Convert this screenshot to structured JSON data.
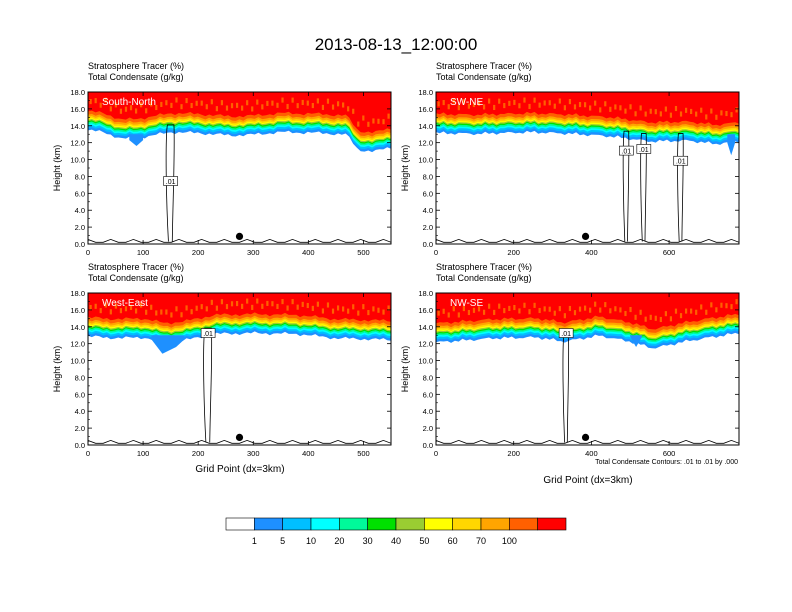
{
  "title": "2013-08-13_12:00:00",
  "header_line1": "Stratosphere Tracer   (%)",
  "header_line2": "Total Condensate   (g/kg)",
  "ylabel": "Height (km)",
  "xlabel": "Grid Point (dx=3km)",
  "contour_note": "Total Condensate Contours: .01 to .01 by .000",
  "chart_data": [
    {
      "type": "heatmap",
      "panel": "South-North",
      "xlim": [
        0,
        550
      ],
      "ylim": [
        0,
        18
      ],
      "xticks": [
        0,
        100,
        200,
        300,
        400,
        500
      ],
      "yticks": [
        "0.0",
        "2.0",
        "4.0",
        "6.0",
        "8.0",
        "10.0",
        "12.0",
        "14.0",
        "16.0",
        "18.0"
      ],
      "marker_x": 275,
      "contour_labels": [
        {
          "text": ".01",
          "x": 150,
          "y": 7.4
        }
      ],
      "tracer_base": [
        [
          0,
          14.8
        ],
        [
          30,
          14.6
        ],
        [
          60,
          13.8
        ],
        [
          80,
          13.9
        ],
        [
          110,
          14.1
        ],
        [
          150,
          14.6
        ],
        [
          200,
          14.5
        ],
        [
          260,
          14.2
        ],
        [
          300,
          14.3
        ],
        [
          350,
          14.6
        ],
        [
          420,
          14.5
        ],
        [
          470,
          14.3
        ],
        [
          490,
          12.5
        ],
        [
          520,
          12.3
        ],
        [
          550,
          12.8
        ]
      ],
      "blue_dip": [
        [
          75,
          12.3
        ],
        [
          88,
          11.6
        ],
        [
          100,
          12.3
        ]
      ]
    },
    {
      "type": "heatmap",
      "panel": "SW-NE",
      "xlim": [
        0,
        780
      ],
      "ylim": [
        0,
        18
      ],
      "xticks": [
        0,
        200,
        400,
        600
      ],
      "yticks": [
        "0.0",
        "2.0",
        "4.0",
        "6.0",
        "8.0",
        "10.0",
        "12.0",
        "14.0",
        "16.0",
        "18.0"
      ],
      "marker_x": 385,
      "contour_labels": [
        {
          "text": ".01",
          "x": 490,
          "y": 11.0
        },
        {
          "text": ".01",
          "x": 535,
          "y": 11.2
        },
        {
          "text": ".01",
          "x": 630,
          "y": 9.8
        }
      ],
      "tracer_base": [
        [
          0,
          14.5
        ],
        [
          100,
          14.4
        ],
        [
          250,
          14.6
        ],
        [
          350,
          14.4
        ],
        [
          450,
          14.1
        ],
        [
          550,
          13.5
        ],
        [
          650,
          13.6
        ],
        [
          720,
          13.2
        ],
        [
          780,
          13.5
        ]
      ],
      "blue_dip": [
        [
          750,
          12.0
        ],
        [
          760,
          10.5
        ],
        [
          770,
          12.0
        ]
      ]
    },
    {
      "type": "heatmap",
      "panel": "West-East",
      "xlim": [
        0,
        550
      ],
      "ylim": [
        0,
        18
      ],
      "xticks": [
        0,
        100,
        200,
        300,
        400,
        500
      ],
      "yticks": [
        "0.0",
        "2.0",
        "4.0",
        "6.0",
        "8.0",
        "10.0",
        "12.0",
        "14.0",
        "16.0",
        "18.0"
      ],
      "marker_x": 275,
      "contour_labels": [
        {
          "text": ".01",
          "x": 218,
          "y": 13.2
        }
      ],
      "tracer_base": [
        [
          0,
          14.2
        ],
        [
          60,
          14.0
        ],
        [
          100,
          14.1
        ],
        [
          140,
          13.5
        ],
        [
          180,
          13.8
        ],
        [
          230,
          14.5
        ],
        [
          300,
          14.6
        ],
        [
          380,
          14.5
        ],
        [
          450,
          14.0
        ],
        [
          550,
          13.8
        ]
      ],
      "blue_dip": [
        [
          115,
          12.5
        ],
        [
          135,
          10.8
        ],
        [
          160,
          11.6
        ],
        [
          175,
          12.5
        ]
      ]
    },
    {
      "type": "heatmap",
      "panel": "NW-SE",
      "xlim": [
        0,
        780
      ],
      "ylim": [
        0,
        18
      ],
      "xticks": [
        0,
        200,
        400,
        600
      ],
      "yticks": [
        "0.0",
        "2.0",
        "4.0",
        "6.0",
        "8.0",
        "10.0",
        "12.0",
        "14.0",
        "16.0",
        "18.0"
      ],
      "marker_x": 385,
      "contour_labels": [
        {
          "text": ".01",
          "x": 335,
          "y": 13.2
        }
      ],
      "tracer_base": [
        [
          0,
          13.5
        ],
        [
          150,
          14.0
        ],
        [
          260,
          14.1
        ],
        [
          330,
          13.6
        ],
        [
          420,
          14.3
        ],
        [
          500,
          13.6
        ],
        [
          560,
          12.8
        ],
        [
          640,
          13.6
        ],
        [
          720,
          14.2
        ],
        [
          780,
          14.6
        ]
      ],
      "blue_dip": [
        [
          500,
          12.8
        ],
        [
          515,
          11.6
        ],
        [
          530,
          12.8
        ]
      ]
    }
  ],
  "colorbar": {
    "labels": [
      "1",
      "5",
      "10",
      "20",
      "30",
      "40",
      "50",
      "60",
      "70",
      "100"
    ],
    "colors": [
      "#ffffff",
      "#1e90ff",
      "#00bfff",
      "#00ffff",
      "#00fa9a",
      "#00e000",
      "#9acd32",
      "#ffff00",
      "#ffd700",
      "#ffa500",
      "#ff6000",
      "#ff0000"
    ]
  }
}
